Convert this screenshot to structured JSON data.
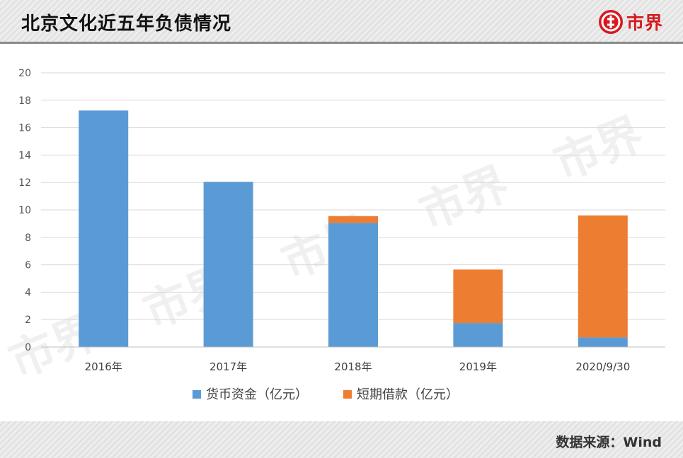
{
  "header": {
    "title": "北京文化近五年负债情况",
    "brand": "市界"
  },
  "footer": {
    "source": "数据来源：Wind"
  },
  "watermark": {
    "text": "市界"
  },
  "colors": {
    "cash": "#5b9bd5",
    "loans": "#ed7d31",
    "grid": "#d9d9d9"
  },
  "chart_data": {
    "type": "bar",
    "stacked": true,
    "title": "北京文化近五年负债情况",
    "categories": [
      "2016年",
      "2017年",
      "2018年",
      "2019年",
      "2020/9/30"
    ],
    "series": [
      {
        "name": "货币资金（亿元）",
        "values": [
          17.25,
          12.05,
          9.05,
          1.75,
          0.7
        ]
      },
      {
        "name": "短期借款（亿元）",
        "values": [
          0,
          0,
          0.5,
          3.9,
          8.9
        ]
      }
    ],
    "ylim": [
      0,
      20
    ],
    "yticks": [
      0,
      2,
      4,
      6,
      8,
      10,
      12,
      14,
      16,
      18,
      20
    ],
    "xlabel": "",
    "ylabel": "",
    "legend": "bottom",
    "grid": true
  }
}
